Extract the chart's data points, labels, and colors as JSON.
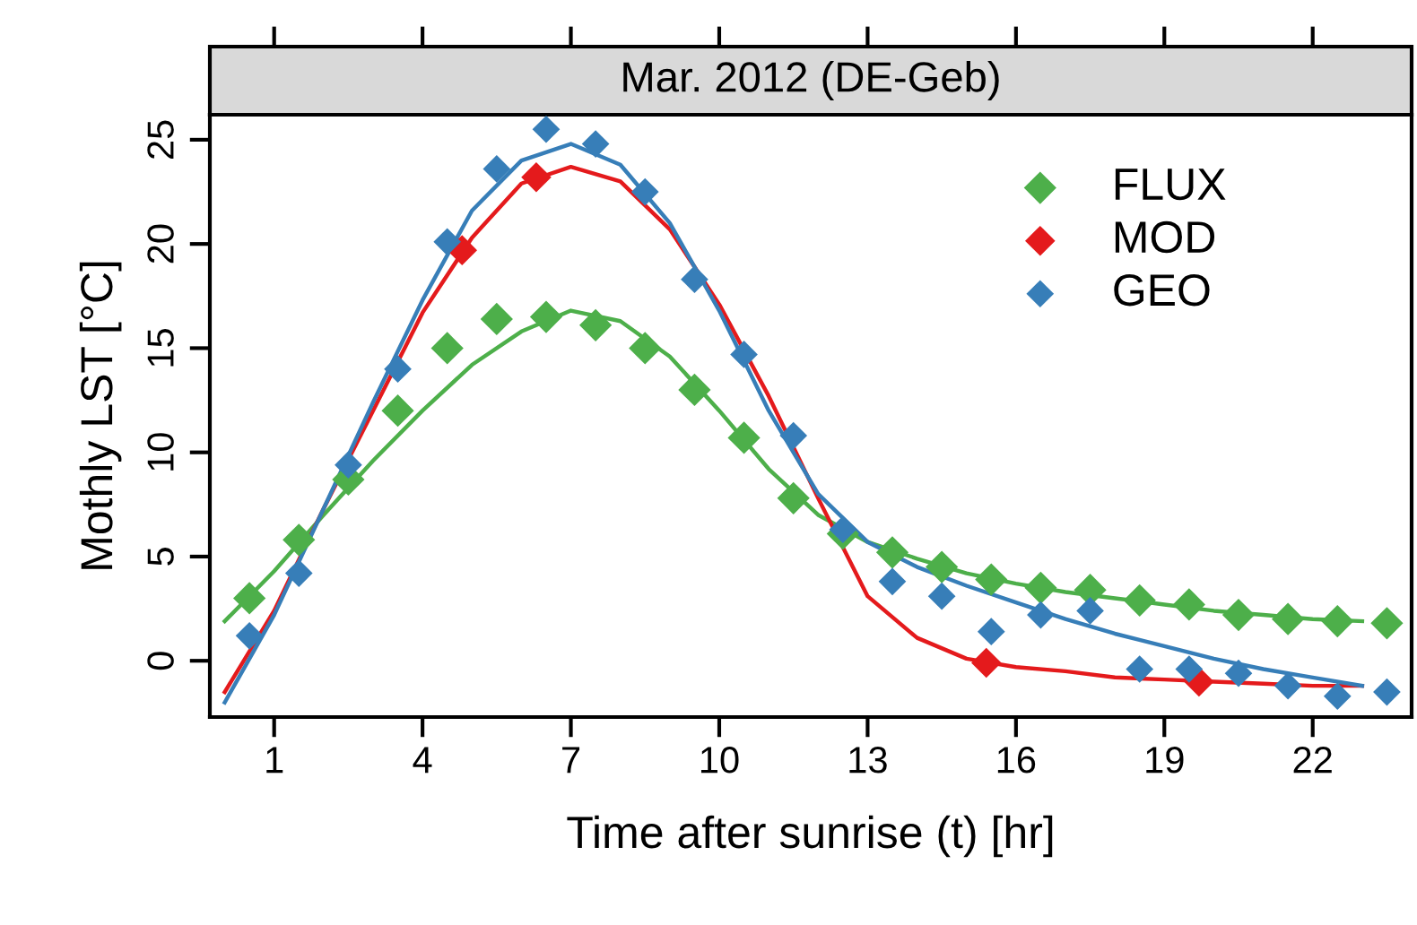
{
  "chart_data": {
    "type": "scatter",
    "title": "Mar. 2012 (DE-Geb)",
    "xlabel": "Time after sunrise (t) [hr]",
    "ylabel": "Mothly LST [°C]",
    "xlim": [
      -0.3,
      24.0
    ],
    "ylim": [
      -2.7,
      26.2
    ],
    "xticks": [
      1,
      4,
      7,
      10,
      13,
      16,
      19,
      22
    ],
    "yticks": [
      0,
      5,
      10,
      15,
      20,
      25
    ],
    "grid": false,
    "legend": "top right",
    "series": [
      {
        "name": "FLUX",
        "marker": "diamond",
        "color": "#4daf4a",
        "x": [
          0.5,
          1.5,
          2.5,
          3.5,
          4.5,
          5.5,
          6.5,
          7.5,
          8.5,
          9.5,
          10.5,
          11.5,
          12.5,
          13.5,
          14.5,
          15.5,
          16.5,
          17.5,
          18.5,
          19.5,
          20.5,
          21.5,
          22.5,
          23.5
        ],
        "values": [
          3.0,
          5.8,
          8.7,
          12.0,
          15.0,
          16.4,
          16.5,
          16.1,
          15.0,
          13.0,
          10.7,
          7.8,
          6.1,
          5.2,
          4.5,
          3.9,
          3.5,
          3.4,
          2.9,
          2.7,
          2.2,
          2.0,
          1.9,
          1.8
        ]
      },
      {
        "name": "MOD",
        "marker": "diamond",
        "color": "#e41a1c",
        "x": [
          4.8,
          6.3,
          15.4,
          19.7
        ],
        "values": [
          19.7,
          23.2,
          -0.1,
          -1.0
        ]
      },
      {
        "name": "GEO",
        "marker": "diamond",
        "color": "#377eb8",
        "x": [
          0.5,
          1.5,
          2.5,
          3.5,
          4.5,
          5.5,
          6.5,
          7.5,
          8.5,
          9.5,
          10.5,
          11.5,
          12.5,
          13.5,
          14.5,
          15.5,
          16.5,
          17.5,
          18.5,
          19.5,
          20.5,
          21.5,
          22.5,
          23.5
        ],
        "values": [
          1.2,
          4.2,
          9.4,
          14.0,
          20.1,
          23.6,
          25.5,
          24.8,
          22.5,
          18.3,
          14.7,
          10.8,
          6.3,
          3.8,
          3.1,
          1.4,
          2.2,
          2.4,
          -0.4,
          -0.4,
          -0.6,
          -1.2,
          -1.7,
          -1.5
        ]
      },
      {
        "type": "line",
        "marker": "none",
        "color": "#4daf4a",
        "x": [
          0,
          1,
          2,
          3,
          4,
          5,
          6,
          7,
          8,
          9,
          10,
          11,
          12,
          13,
          14,
          15,
          16,
          17,
          18,
          19,
          20,
          21,
          22,
          23
        ],
        "values": [
          1.9,
          4.3,
          7.0,
          9.6,
          12.0,
          14.2,
          15.8,
          16.8,
          16.3,
          14.6,
          12.0,
          9.2,
          7.0,
          5.7,
          4.9,
          4.2,
          3.7,
          3.3,
          3.0,
          2.7,
          2.4,
          2.2,
          2.0,
          1.9
        ]
      },
      {
        "type": "line",
        "marker": "none",
        "color": "#e41a1c",
        "x": [
          0,
          1,
          2,
          3,
          4,
          5,
          6,
          7,
          8,
          9,
          10,
          11,
          12,
          13,
          14,
          15,
          16,
          17,
          18,
          19,
          20,
          21,
          22,
          23
        ],
        "values": [
          -1.5,
          2.4,
          7.3,
          12.0,
          16.7,
          20.3,
          22.9,
          23.7,
          23.0,
          20.7,
          17.1,
          12.7,
          7.8,
          3.1,
          1.1,
          0.1,
          -0.3,
          -0.5,
          -0.8,
          -0.9,
          -1.0,
          -1.1,
          -1.2,
          -1.2
        ]
      },
      {
        "type": "line",
        "marker": "none",
        "color": "#377eb8",
        "x": [
          0,
          1,
          2,
          3,
          4,
          5,
          6,
          7,
          8,
          9,
          10,
          11,
          12,
          13,
          14,
          15,
          16,
          17,
          18,
          19,
          20,
          21,
          22,
          23
        ],
        "values": [
          -2.0,
          2.2,
          7.3,
          12.4,
          17.3,
          21.6,
          24.0,
          24.8,
          23.8,
          21.0,
          16.8,
          12.0,
          8.0,
          5.7,
          4.5,
          3.6,
          2.8,
          2.0,
          1.3,
          0.7,
          0.1,
          -0.4,
          -0.8,
          -1.2
        ]
      }
    ]
  }
}
